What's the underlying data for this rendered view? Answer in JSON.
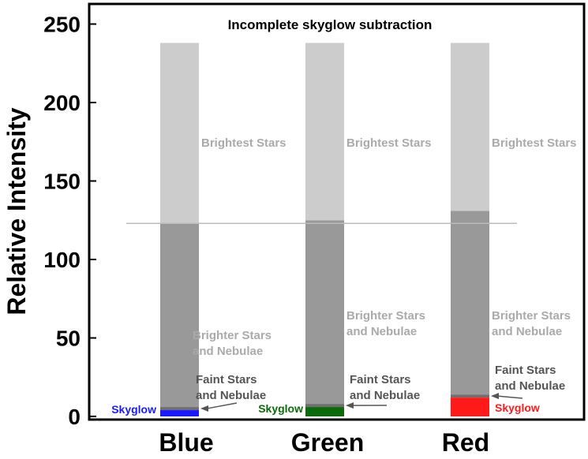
{
  "chart_data": {
    "type": "bar",
    "title": "Incomplete skyglow subtraction",
    "ylabel": "Relative Intensity",
    "ylim": [
      0,
      265
    ],
    "yticks": [
      0,
      50,
      100,
      150,
      200,
      250
    ],
    "categories": [
      "Blue",
      "Green",
      "Red"
    ],
    "reference_line": 123,
    "series": [
      {
        "name": "Skyglow",
        "values": [
          4,
          6,
          12
        ]
      },
      {
        "name": "Faint Stars and Nebulae",
        "values": [
          2,
          2,
          2
        ]
      },
      {
        "name": "Brighter Stars and Nebulae",
        "values": [
          117,
          117,
          117
        ]
      },
      {
        "name": "Brightest Stars",
        "values": [
          115,
          113,
          107
        ]
      }
    ],
    "skyglow_colors": [
      "#1a1aff",
      "#0b6b0b",
      "#ff1a1a"
    ],
    "layer_colors": {
      "faint": "#6f6f6f",
      "brighter": "#999999",
      "brightest": "#cccccc",
      "reference_line": "#bbbbbb",
      "annotation_text": "#555555",
      "annotation_text_light": "#aaaaaa"
    },
    "annotations": {
      "brightest": "Brightest Stars",
      "brighter_line1": "Brighter Stars",
      "brighter_line2": "and Nebulae",
      "faint_line1": "Faint Stars",
      "faint_line2": "and Nebulae",
      "skyglow": "Skyglow"
    }
  }
}
